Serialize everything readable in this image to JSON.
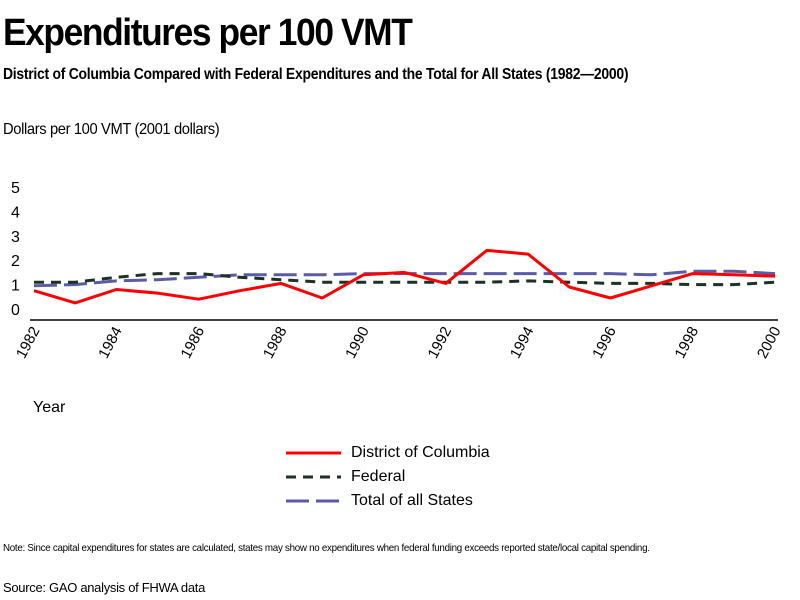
{
  "chart_data": {
    "type": "line",
    "title": "Expenditures per 100 VMT",
    "subtitle": "District of Columbia Compared with Federal Expenditures and the Total for All States (1982—2000)",
    "ylabel": "Dollars per 100 VMT (2001 dollars)",
    "xlabel": "Year",
    "ylim": [
      0,
      5
    ],
    "yticks": [
      "0",
      "1",
      "2",
      "3",
      "4",
      "5"
    ],
    "xticks": [
      "1982",
      "1984",
      "1986",
      "1988",
      "1990",
      "1992",
      "1994",
      "1996",
      "1998",
      "2000"
    ],
    "x": [
      1982,
      1983,
      1984,
      1985,
      1986,
      1987,
      1988,
      1989,
      1990,
      1991,
      1992,
      1993,
      1994,
      1995,
      1996,
      1997,
      1998,
      1999,
      2000
    ],
    "grid": false,
    "legend_position": "bottom-center",
    "series": [
      {
        "name": "District of Columbia",
        "color": "#ff0000",
        "style": "solid",
        "values": [
          0.75,
          0.25,
          0.8,
          0.65,
          0.4,
          0.75,
          1.05,
          0.45,
          1.4,
          1.5,
          1.05,
          2.4,
          2.25,
          0.9,
          0.45,
          0.95,
          1.45,
          1.4,
          1.35
        ]
      },
      {
        "name": "Federal",
        "color": "#1a3325",
        "style": "dashed",
        "values": [
          1.1,
          1.1,
          1.3,
          1.45,
          1.45,
          1.3,
          1.2,
          1.1,
          1.1,
          1.1,
          1.1,
          1.1,
          1.15,
          1.1,
          1.05,
          1.05,
          1.0,
          1.0,
          1.1
        ]
      },
      {
        "name": "Total of all States",
        "color": "#5b5ba8",
        "style": "longdash",
        "values": [
          0.95,
          1.0,
          1.15,
          1.2,
          1.3,
          1.4,
          1.4,
          1.4,
          1.45,
          1.45,
          1.45,
          1.45,
          1.45,
          1.45,
          1.45,
          1.4,
          1.55,
          1.55,
          1.45
        ]
      }
    ]
  },
  "footer": {
    "note": "Note: Since capital expenditures for states are calculated, states may show no expenditures when federal funding exceeds reported state/local capital spending.",
    "source": "Source: GAO analysis of FHWA data"
  }
}
